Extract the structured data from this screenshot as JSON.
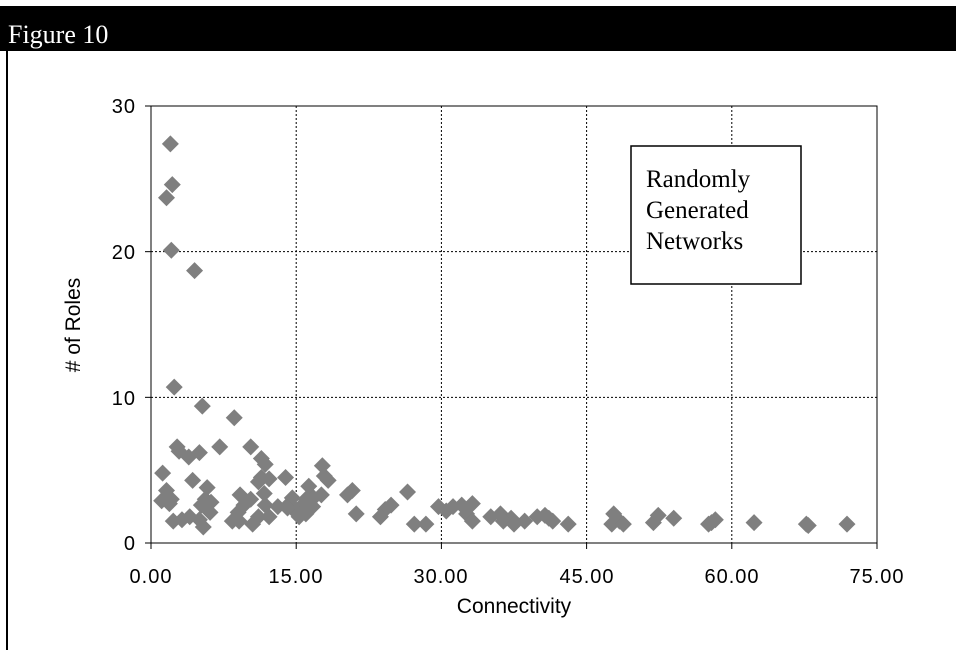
{
  "figure": {
    "title": "Figure 10"
  },
  "chart_data": {
    "type": "scatter",
    "xlabel": "Connectivity",
    "ylabel": "# of Roles",
    "xlim": [
      0,
      75
    ],
    "ylim": [
      0,
      30
    ],
    "x_ticks": [
      "0.00",
      "15.00",
      "30.00",
      "45.00",
      "60.00",
      "75.00"
    ],
    "y_ticks": [
      "0",
      "10",
      "20",
      "30"
    ],
    "grid": true,
    "annotation": [
      "Randomly",
      "Generated",
      "Networks"
    ],
    "marker_color": "#7f7f7f",
    "points": [
      [
        2.0,
        27.4
      ],
      [
        2.2,
        24.6
      ],
      [
        1.6,
        23.7
      ],
      [
        2.1,
        20.1
      ],
      [
        4.5,
        18.7
      ],
      [
        2.4,
        10.7
      ],
      [
        5.3,
        9.4
      ],
      [
        8.6,
        8.6
      ],
      [
        10.3,
        6.6
      ],
      [
        7.1,
        6.6
      ],
      [
        2.7,
        6.6
      ],
      [
        2.9,
        6.3
      ],
      [
        5.0,
        6.2
      ],
      [
        3.9,
        5.9
      ],
      [
        11.4,
        5.8
      ],
      [
        11.8,
        5.4
      ],
      [
        17.7,
        5.3
      ],
      [
        1.2,
        4.8
      ],
      [
        13.9,
        4.5
      ],
      [
        11.4,
        4.5
      ],
      [
        17.9,
        4.6
      ],
      [
        4.3,
        4.3
      ],
      [
        12.2,
        4.4
      ],
      [
        11.1,
        4.2
      ],
      [
        18.3,
        4.3
      ],
      [
        5.8,
        3.8
      ],
      [
        16.3,
        3.9
      ],
      [
        11.7,
        3.4
      ],
      [
        20.8,
        3.6
      ],
      [
        1.6,
        3.6
      ],
      [
        26.5,
        3.5
      ],
      [
        17.6,
        3.3
      ],
      [
        9.2,
        3.3
      ],
      [
        20.3,
        3.3
      ],
      [
        16.8,
        3.1
      ],
      [
        14.6,
        3.1
      ],
      [
        10.3,
        3.0
      ],
      [
        1.1,
        2.9
      ],
      [
        2.1,
        3.0
      ],
      [
        16.0,
        3.0
      ],
      [
        5.6,
        3.0
      ],
      [
        5.2,
        2.6
      ],
      [
        14.3,
        2.7
      ],
      [
        1.9,
        2.7
      ],
      [
        6.2,
        2.8
      ],
      [
        9.6,
        2.6
      ],
      [
        11.8,
        2.6
      ],
      [
        14.7,
        2.3
      ],
      [
        14.1,
        2.4
      ],
      [
        24.8,
        2.6
      ],
      [
        13.1,
        2.5
      ],
      [
        15.5,
        2.5
      ],
      [
        16.7,
        2.5
      ],
      [
        29.7,
        2.5
      ],
      [
        31.2,
        2.5
      ],
      [
        32.1,
        2.6
      ],
      [
        33.2,
        2.7
      ],
      [
        16.2,
        2.5
      ],
      [
        24.2,
        2.3
      ],
      [
        15.9,
        2.2
      ],
      [
        21.2,
        2.0
      ],
      [
        30.5,
        2.2
      ],
      [
        32.6,
        2.0
      ],
      [
        6.1,
        2.1
      ],
      [
        9.0,
        2.1
      ],
      [
        16.0,
        2.0
      ],
      [
        36.1,
        2.0
      ],
      [
        40.7,
        1.9
      ],
      [
        47.8,
        2.0
      ],
      [
        52.4,
        1.9
      ],
      [
        4.0,
        1.8
      ],
      [
        3.2,
        1.6
      ],
      [
        11.1,
        1.8
      ],
      [
        12.2,
        1.8
      ],
      [
        15.3,
        1.8
      ],
      [
        23.7,
        1.8
      ],
      [
        35.1,
        1.8
      ],
      [
        37.2,
        1.7
      ],
      [
        39.9,
        1.8
      ],
      [
        41.1,
        1.7
      ],
      [
        54.0,
        1.7
      ],
      [
        58.3,
        1.6
      ],
      [
        2.3,
        1.5
      ],
      [
        8.4,
        1.5
      ],
      [
        9.1,
        1.5
      ],
      [
        5.0,
        1.6
      ],
      [
        33.2,
        1.5
      ],
      [
        36.4,
        1.5
      ],
      [
        38.6,
        1.5
      ],
      [
        41.5,
        1.5
      ],
      [
        48.4,
        1.5
      ],
      [
        51.9,
        1.4
      ],
      [
        57.9,
        1.4
      ],
      [
        62.3,
        1.4
      ],
      [
        10.5,
        1.3
      ],
      [
        27.2,
        1.3
      ],
      [
        28.4,
        1.3
      ],
      [
        37.5,
        1.3
      ],
      [
        43.1,
        1.3
      ],
      [
        47.6,
        1.3
      ],
      [
        48.8,
        1.3
      ],
      [
        57.6,
        1.3
      ],
      [
        67.7,
        1.3
      ],
      [
        71.9,
        1.3
      ],
      [
        67.9,
        1.2
      ],
      [
        5.4,
        1.1
      ]
    ]
  }
}
